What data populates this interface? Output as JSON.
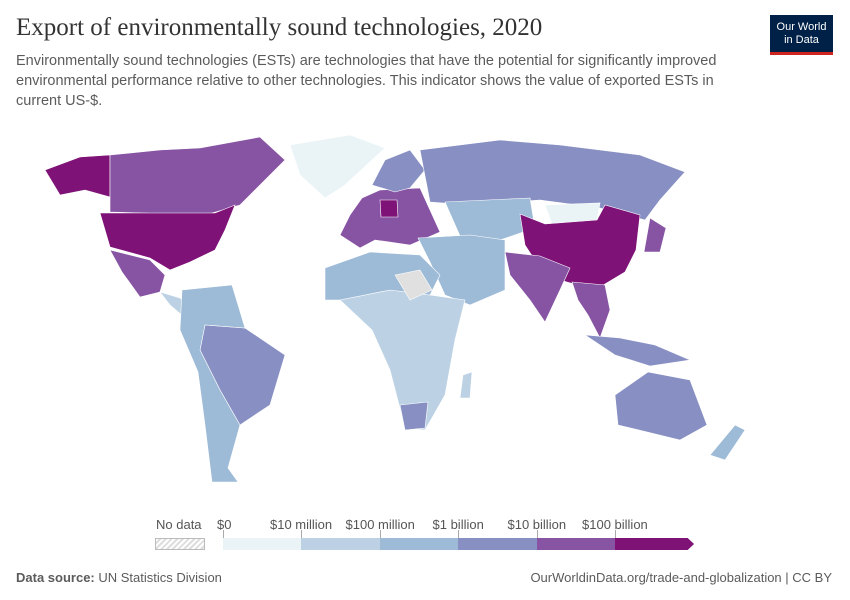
{
  "header": {
    "title": "Export of environmentally sound technologies, 2020",
    "subtitle": "Environmentally sound technologies (ESTs) are technologies that have the potential for significantly improved environmental performance relative to other technologies. This indicator shows the value of exported ESTs in current US-$.",
    "logo_line1": "Our World",
    "logo_line2": "in Data"
  },
  "legend": {
    "no_data": "No data",
    "ticks": [
      "$0",
      "$10 million",
      "$100 million",
      "$1 billion",
      "$10 billion",
      "$100 billion"
    ],
    "colors": [
      "#eaf4f7",
      "#bcd2e4",
      "#9dbad7",
      "#8890c3",
      "#8754a3",
      "#7e1277"
    ],
    "no_data_color": "#e0e0e0"
  },
  "map": {
    "regions": [
      {
        "name": "Alaska",
        "bin": 5
      },
      {
        "name": "Canada",
        "bin": 4
      },
      {
        "name": "United States",
        "bin": 5
      },
      {
        "name": "Greenland",
        "bin": 0
      },
      {
        "name": "Mexico",
        "bin": 4
      },
      {
        "name": "Central America",
        "bin": 1
      },
      {
        "name": "Brazil",
        "bin": 3
      },
      {
        "name": "Rest of South America",
        "bin": 2
      },
      {
        "name": "Western Europe",
        "bin": 4
      },
      {
        "name": "Germany",
        "bin": 5
      },
      {
        "name": "Scandinavia",
        "bin": 3
      },
      {
        "name": "Russia",
        "bin": 3
      },
      {
        "name": "Central Asia",
        "bin": 2
      },
      {
        "name": "Mongolia",
        "bin": 0
      },
      {
        "name": "China",
        "bin": 5
      },
      {
        "name": "Middle East",
        "bin": 2
      },
      {
        "name": "India",
        "bin": 4
      },
      {
        "name": "Southeast Asia",
        "bin": 4
      },
      {
        "name": "Indonesia",
        "bin": 3
      },
      {
        "name": "Japan",
        "bin": 4
      },
      {
        "name": "Africa",
        "bin": 1
      },
      {
        "name": "North Africa",
        "bin": 2
      },
      {
        "name": "South Africa",
        "bin": 3
      },
      {
        "name": "Madagascar",
        "bin": 1
      },
      {
        "name": "Australia",
        "bin": 3
      },
      {
        "name": "New Zealand",
        "bin": 2
      },
      {
        "name": "Sahara no data",
        "bin": -1
      }
    ]
  },
  "footer": {
    "source_label": "Data source:",
    "source": "UN Statistics Division",
    "url": "OurWorldinData.org/trade-and-globalization | CC BY"
  }
}
